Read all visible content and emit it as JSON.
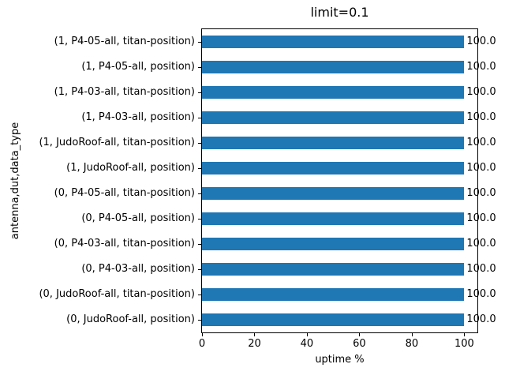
{
  "chart_data": {
    "type": "bar",
    "orientation": "horizontal",
    "title": "limit=0.1",
    "xlabel": "uptime %",
    "ylabel": "antenna,dut,data_type",
    "categories": [
      "(1, P4-05-all, titan-position)",
      "(1, P4-05-all, position)",
      "(1, P4-03-all, titan-position)",
      "(1, P4-03-all, position)",
      "(1, JudoRoof-all, titan-position)",
      "(1, JudoRoof-all, position)",
      "(0, P4-05-all, titan-position)",
      "(0, P4-05-all, position)",
      "(0, P4-03-all, titan-position)",
      "(0, P4-03-all, position)",
      "(0, JudoRoof-all, titan-position)",
      "(0, JudoRoof-all, position)"
    ],
    "values": [
      100.0,
      100.0,
      100.0,
      100.0,
      100.0,
      100.0,
      100.0,
      100.0,
      100.0,
      100.0,
      100.0,
      100.0
    ],
    "bar_labels": [
      "100.0",
      "100.0",
      "100.0",
      "100.0",
      "100.0",
      "100.0",
      "100.0",
      "100.0",
      "100.0",
      "100.0",
      "100.0",
      "100.0"
    ],
    "xticks": [
      0,
      20,
      40,
      60,
      80,
      100
    ],
    "xlim": [
      0,
      105
    ],
    "bar_color": "#1f77b4",
    "text_color": "#000000",
    "background_color": "#ffffff",
    "grid": false,
    "legend": false
  }
}
